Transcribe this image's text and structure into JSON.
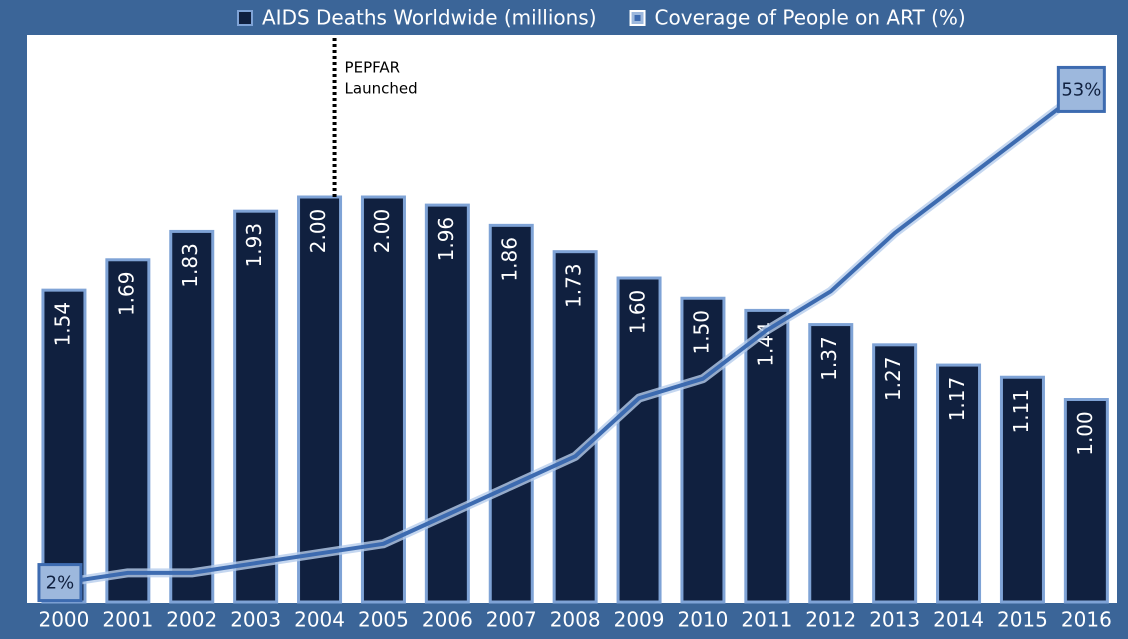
{
  "chart_data": {
    "type": "bar",
    "categories": [
      "2000",
      "2001",
      "2002",
      "2003",
      "2004",
      "2005",
      "2006",
      "2007",
      "2008",
      "2009",
      "2010",
      "2011",
      "2012",
      "2013",
      "2014",
      "2015",
      "2016"
    ],
    "series": [
      {
        "name": "AIDS Deaths Worldwide (millions)",
        "type": "bar",
        "color": "#10203f",
        "values": [
          1.54,
          1.69,
          1.83,
          1.93,
          2.0,
          2.0,
          1.96,
          1.86,
          1.73,
          1.6,
          1.5,
          1.44,
          1.37,
          1.27,
          1.17,
          1.11,
          1.0
        ],
        "value_labels": [
          "1.54",
          "1.69",
          "1.83",
          "1.93",
          "2.00",
          "2.00",
          "1.96",
          "1.86",
          "1.73",
          "1.60",
          "1.50",
          "1.44",
          "1.37",
          "1.27",
          "1.17",
          "1.11",
          "1.00"
        ]
      },
      {
        "name": "Coverage of People on ART (%)",
        "type": "line",
        "axis": "y2",
        "color": "#3d6bb0",
        "values": [
          2,
          3,
          3,
          4,
          5,
          6,
          9,
          12,
          15,
          21,
          23,
          28,
          32,
          38,
          43,
          48,
          53
        ],
        "value_labels": [
          "2%",
          null,
          null,
          null,
          null,
          null,
          null,
          null,
          null,
          null,
          null,
          null,
          null,
          null,
          null,
          null,
          "53%"
        ]
      }
    ],
    "ylim": [
      0,
      2.8
    ],
    "y2lim": [
      0,
      58.4
    ],
    "annotation": {
      "category": "2004",
      "lines": [
        "PEPFAR",
        "Launched"
      ]
    }
  }
}
